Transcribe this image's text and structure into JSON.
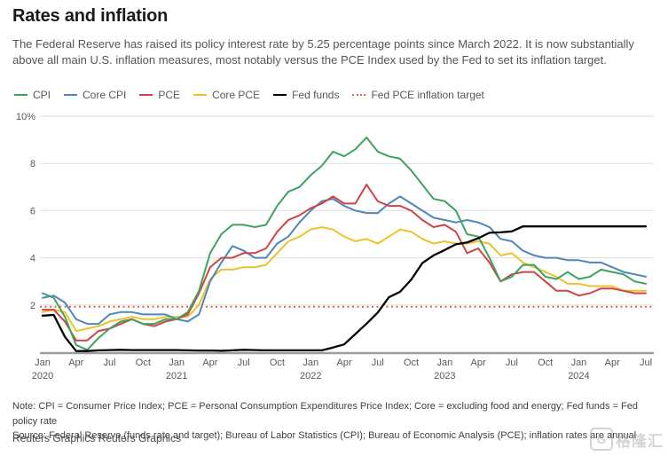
{
  "header": {
    "title": "Rates and inflation",
    "subtitle": "The Federal Reserve has raised its policy interest rate by 5.25 percentage points since March 2022. It is now substantially above all main U.S. inflation measures, most notably versus the PCE Index used by the Fed to set its inflation target."
  },
  "legend": [
    {
      "label": "CPI",
      "color": "#3fa25f",
      "dotted": false
    },
    {
      "label": "Core CPI",
      "color": "#4e87b8",
      "dotted": false
    },
    {
      "label": "PCE",
      "color": "#d04347",
      "dotted": false
    },
    {
      "label": "Core PCE",
      "color": "#ecc32b",
      "dotted": false
    },
    {
      "label": "Fed funds",
      "color": "#000000",
      "dotted": false
    },
    {
      "label": "Fed PCE inflation target",
      "color": "#e2683a",
      "dotted": true
    }
  ],
  "chart_data": {
    "type": "line",
    "x_start": "2020-01",
    "x_end": "2024-07",
    "x_frequency": "monthly",
    "ylim": [
      0,
      10
    ],
    "grid": true,
    "yticks": [
      {
        "v": 10,
        "label": "10%"
      },
      {
        "v": 8,
        "label": "8"
      },
      {
        "v": 6,
        "label": "6"
      },
      {
        "v": 4,
        "label": "4"
      },
      {
        "v": 2,
        "label": "2"
      }
    ],
    "xticks": [
      {
        "m": 0,
        "label": "Jan",
        "year": "2020"
      },
      {
        "m": 3,
        "label": "Apr"
      },
      {
        "m": 6,
        "label": "Jul"
      },
      {
        "m": 9,
        "label": "Oct"
      },
      {
        "m": 12,
        "label": "Jan",
        "year": "2021"
      },
      {
        "m": 15,
        "label": "Apr"
      },
      {
        "m": 18,
        "label": "Jul"
      },
      {
        "m": 21,
        "label": "Oct"
      },
      {
        "m": 24,
        "label": "Jan",
        "year": "2022"
      },
      {
        "m": 27,
        "label": "Apr"
      },
      {
        "m": 30,
        "label": "Jul"
      },
      {
        "m": 33,
        "label": "Oct"
      },
      {
        "m": 36,
        "label": "Jan",
        "year": "2023"
      },
      {
        "m": 39,
        "label": "Apr"
      },
      {
        "m": 42,
        "label": "Jul"
      },
      {
        "m": 45,
        "label": "Oct"
      },
      {
        "m": 48,
        "label": "Jan",
        "year": "2024"
      },
      {
        "m": 51,
        "label": "Apr"
      },
      {
        "m": 54,
        "label": "Jul"
      }
    ],
    "target_line": {
      "name": "Fed PCE inflation target",
      "value": 2.0,
      "color": "#e2683a",
      "dashed": true
    },
    "series": [
      {
        "name": "Core PCE",
        "color": "#ecc32b",
        "values": [
          1.7,
          1.8,
          1.7,
          0.9,
          1.0,
          1.1,
          1.3,
          1.4,
          1.5,
          1.4,
          1.4,
          1.5,
          1.5,
          1.5,
          2.0,
          3.1,
          3.5,
          3.5,
          3.6,
          3.6,
          3.7,
          4.2,
          4.7,
          4.9,
          5.2,
          5.3,
          5.2,
          4.9,
          4.7,
          4.8,
          4.6,
          4.9,
          5.2,
          5.1,
          4.8,
          4.6,
          4.7,
          4.6,
          4.6,
          4.7,
          4.6,
          4.1,
          4.2,
          3.8,
          3.6,
          3.4,
          3.2,
          2.9,
          2.9,
          2.8,
          2.8,
          2.8,
          2.6,
          2.6,
          2.6
        ]
      },
      {
        "name": "Core CPI",
        "color": "#4e87b8",
        "values": [
          2.3,
          2.4,
          2.1,
          1.4,
          1.2,
          1.2,
          1.6,
          1.7,
          1.7,
          1.6,
          1.6,
          1.6,
          1.4,
          1.3,
          1.6,
          3.0,
          3.8,
          4.5,
          4.3,
          4.0,
          4.0,
          4.6,
          4.9,
          5.5,
          6.0,
          6.4,
          6.5,
          6.2,
          6.0,
          5.9,
          5.9,
          6.3,
          6.6,
          6.3,
          6.0,
          5.7,
          5.6,
          5.5,
          5.6,
          5.5,
          5.3,
          4.8,
          4.7,
          4.3,
          4.1,
          4.0,
          4.0,
          3.9,
          3.9,
          3.8,
          3.8,
          3.6,
          3.4,
          3.3,
          3.2
        ]
      },
      {
        "name": "PCE",
        "color": "#d04347",
        "values": [
          1.8,
          1.8,
          1.3,
          0.5,
          0.5,
          0.9,
          1.0,
          1.2,
          1.4,
          1.2,
          1.1,
          1.3,
          1.4,
          1.6,
          2.5,
          3.6,
          4.0,
          4.0,
          4.2,
          4.2,
          4.4,
          5.1,
          5.6,
          5.8,
          6.1,
          6.3,
          6.6,
          6.3,
          6.3,
          7.1,
          6.4,
          6.2,
          6.2,
          6.0,
          5.6,
          5.3,
          5.4,
          5.1,
          4.2,
          4.4,
          3.8,
          3.0,
          3.3,
          3.4,
          3.4,
          3.0,
          2.6,
          2.6,
          2.4,
          2.5,
          2.7,
          2.7,
          2.6,
          2.5,
          2.5
        ]
      },
      {
        "name": "CPI",
        "color": "#3fa25f",
        "values": [
          2.5,
          2.3,
          1.5,
          0.3,
          0.1,
          0.6,
          1.0,
          1.3,
          1.4,
          1.2,
          1.2,
          1.4,
          1.4,
          1.7,
          2.6,
          4.2,
          5.0,
          5.4,
          5.4,
          5.3,
          5.4,
          6.2,
          6.8,
          7.0,
          7.5,
          7.9,
          8.5,
          8.3,
          8.6,
          9.1,
          8.5,
          8.3,
          8.2,
          7.7,
          7.1,
          6.5,
          6.4,
          6.0,
          5.0,
          4.9,
          4.0,
          3.0,
          3.2,
          3.7,
          3.7,
          3.2,
          3.1,
          3.4,
          3.1,
          3.2,
          3.5,
          3.4,
          3.3,
          3.0,
          2.9
        ]
      },
      {
        "name": "Fed funds",
        "color": "#000000",
        "values": [
          1.55,
          1.58,
          0.65,
          0.05,
          0.05,
          0.08,
          0.09,
          0.1,
          0.09,
          0.09,
          0.09,
          0.09,
          0.09,
          0.08,
          0.07,
          0.07,
          0.06,
          0.08,
          0.1,
          0.09,
          0.08,
          0.08,
          0.08,
          0.08,
          0.08,
          0.08,
          0.2,
          0.33,
          0.77,
          1.21,
          1.68,
          2.33,
          2.56,
          3.08,
          3.78,
          4.1,
          4.33,
          4.57,
          4.65,
          4.83,
          5.06,
          5.08,
          5.12,
          5.33,
          5.33,
          5.33,
          5.33,
          5.33,
          5.33,
          5.33,
          5.33,
          5.33,
          5.33,
          5.33,
          5.33
        ]
      }
    ]
  },
  "footer": {
    "note": "Note: CPI = Consumer Price Index; PCE = Personal Consumption Expenditures Price Index; Core = excluding food and energy; Fed funds = Fed policy rate",
    "source": "Source: Federal Reserve (funds rate and target); Bureau of Labor Statistics (CPI); Bureau of Economic Analysis (PCE); inflation rates are annual",
    "credit": "Reuters Graphics Reuters Graphics"
  },
  "watermark": {
    "letter": "G",
    "text": "格隆汇"
  }
}
